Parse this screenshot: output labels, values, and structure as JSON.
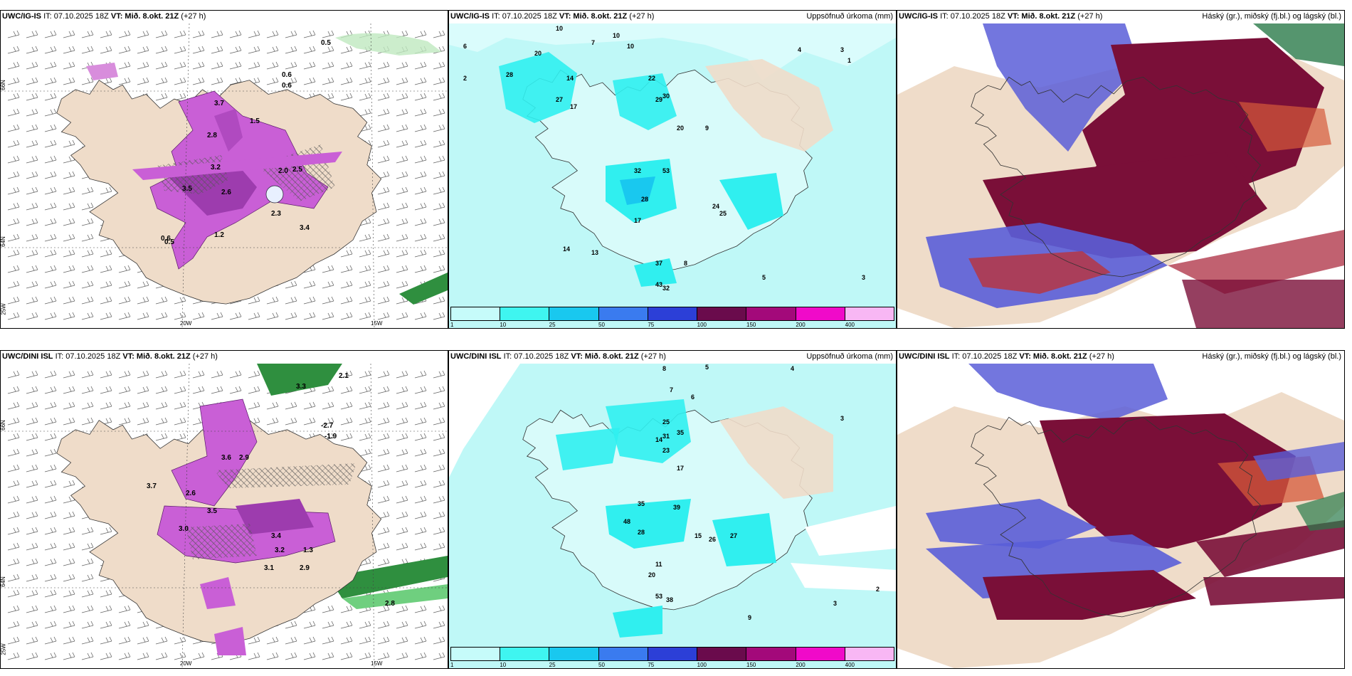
{
  "rows": [
    {
      "model": "UWC/IG-IS",
      "init": "IT: 07.10.2025 18Z",
      "valid_label": "VT:",
      "valid": "Mið. 8.okt. 21Z",
      "lead": "(+27 h)"
    },
    {
      "model": "UWC/DINI ISL",
      "init": "IT: 07.10.2025 18Z",
      "valid_label": "VT:",
      "valid": "Mið. 8.okt. 21Z",
      "lead": "(+27 h)"
    }
  ],
  "panel_titles": {
    "precip": "Uppsöfnuð úrkoma (mm)",
    "clouds": "Háský (gr.), miðský (fj.bl.) og lágský (bl.)"
  },
  "axis": {
    "lon_20": "20W",
    "lon_15": "15W",
    "lat_66": "66N",
    "lat_64": "64N",
    "lat_25": "25W"
  },
  "colorbar": {
    "labels": [
      "1",
      "10",
      "25",
      "50",
      "75",
      "100",
      "150",
      "200",
      "400"
    ],
    "colors": [
      "#c6fbfa",
      "#3ff5f0",
      "#19c8ef",
      "#3a7bef",
      "#2c3fd7",
      "#6a0b4c",
      "#a3097a",
      "#f00ac9",
      "#f8b7f4"
    ]
  },
  "colors": {
    "land": "#efdcc9",
    "ocean_precip": "#bff8f7",
    "precip_mid": "#30efef",
    "purple": "#c95fd6",
    "maroon": "#7a0f38",
    "blue_cloud": "#5a5ed8"
  },
  "top_precip_values": [
    {
      "v": "10"
    },
    {
      "v": "10"
    },
    {
      "v": "10"
    },
    {
      "v": "6"
    },
    {
      "v": "7"
    },
    {
      "v": "2"
    },
    {
      "v": "4"
    },
    {
      "v": "3"
    },
    {
      "v": "1"
    },
    {
      "v": "20"
    },
    {
      "v": "28"
    },
    {
      "v": "14"
    },
    {
      "v": "27"
    },
    {
      "v": "17"
    },
    {
      "v": "22"
    },
    {
      "v": "29"
    },
    {
      "v": "30"
    },
    {
      "v": "20"
    },
    {
      "v": "53"
    },
    {
      "v": "32"
    },
    {
      "v": "28"
    },
    {
      "v": "17"
    },
    {
      "v": "24"
    },
    {
      "v": "25"
    },
    {
      "v": "9"
    },
    {
      "v": "14"
    },
    {
      "v": "13"
    },
    {
      "v": "37"
    },
    {
      "v": "43"
    },
    {
      "v": "32"
    },
    {
      "v": "8"
    },
    {
      "v": "5"
    },
    {
      "v": "3"
    }
  ],
  "bottom_precip_values": [
    {
      "v": "8"
    },
    {
      "v": "5"
    },
    {
      "v": "4"
    },
    {
      "v": "7"
    },
    {
      "v": "6"
    },
    {
      "v": "3"
    },
    {
      "v": "25"
    },
    {
      "v": "14"
    },
    {
      "v": "31"
    },
    {
      "v": "35"
    },
    {
      "v": "23"
    },
    {
      "v": "17"
    },
    {
      "v": "39"
    },
    {
      "v": "35"
    },
    {
      "v": "48"
    },
    {
      "v": "28"
    },
    {
      "v": "26"
    },
    {
      "v": "27"
    },
    {
      "v": "15"
    },
    {
      "v": "11"
    },
    {
      "v": "20"
    },
    {
      "v": "53"
    },
    {
      "v": "38"
    },
    {
      "v": "3"
    },
    {
      "v": "9"
    },
    {
      "v": "2"
    }
  ],
  "top_wind_values": [
    {
      "v": "0.5"
    },
    {
      "v": "0.6"
    },
    {
      "v": "0.6"
    },
    {
      "v": "3.7"
    },
    {
      "v": "1.5"
    },
    {
      "v": "2.8"
    },
    {
      "v": "3.2"
    },
    {
      "v": "2.0"
    },
    {
      "v": "2.5"
    },
    {
      "v": "3.5"
    },
    {
      "v": "2.6"
    },
    {
      "v": "2.3"
    },
    {
      "v": "3.4"
    },
    {
      "v": "1.2"
    },
    {
      "v": "0.6"
    },
    {
      "v": "0.5"
    }
  ],
  "bottom_wind_values": [
    {
      "v": "2.1"
    },
    {
      "v": "3.3"
    },
    {
      "v": "-2.7"
    },
    {
      "v": "-1.9"
    },
    {
      "v": "3.6"
    },
    {
      "v": "2.9"
    },
    {
      "v": "3.7"
    },
    {
      "v": "2.6"
    },
    {
      "v": "3.5"
    },
    {
      "v": "3.0"
    },
    {
      "v": "3.4"
    },
    {
      "v": "3.2"
    },
    {
      "v": "1.3"
    },
    {
      "v": "2.9"
    },
    {
      "v": "3.1"
    },
    {
      "v": "2.8"
    }
  ]
}
